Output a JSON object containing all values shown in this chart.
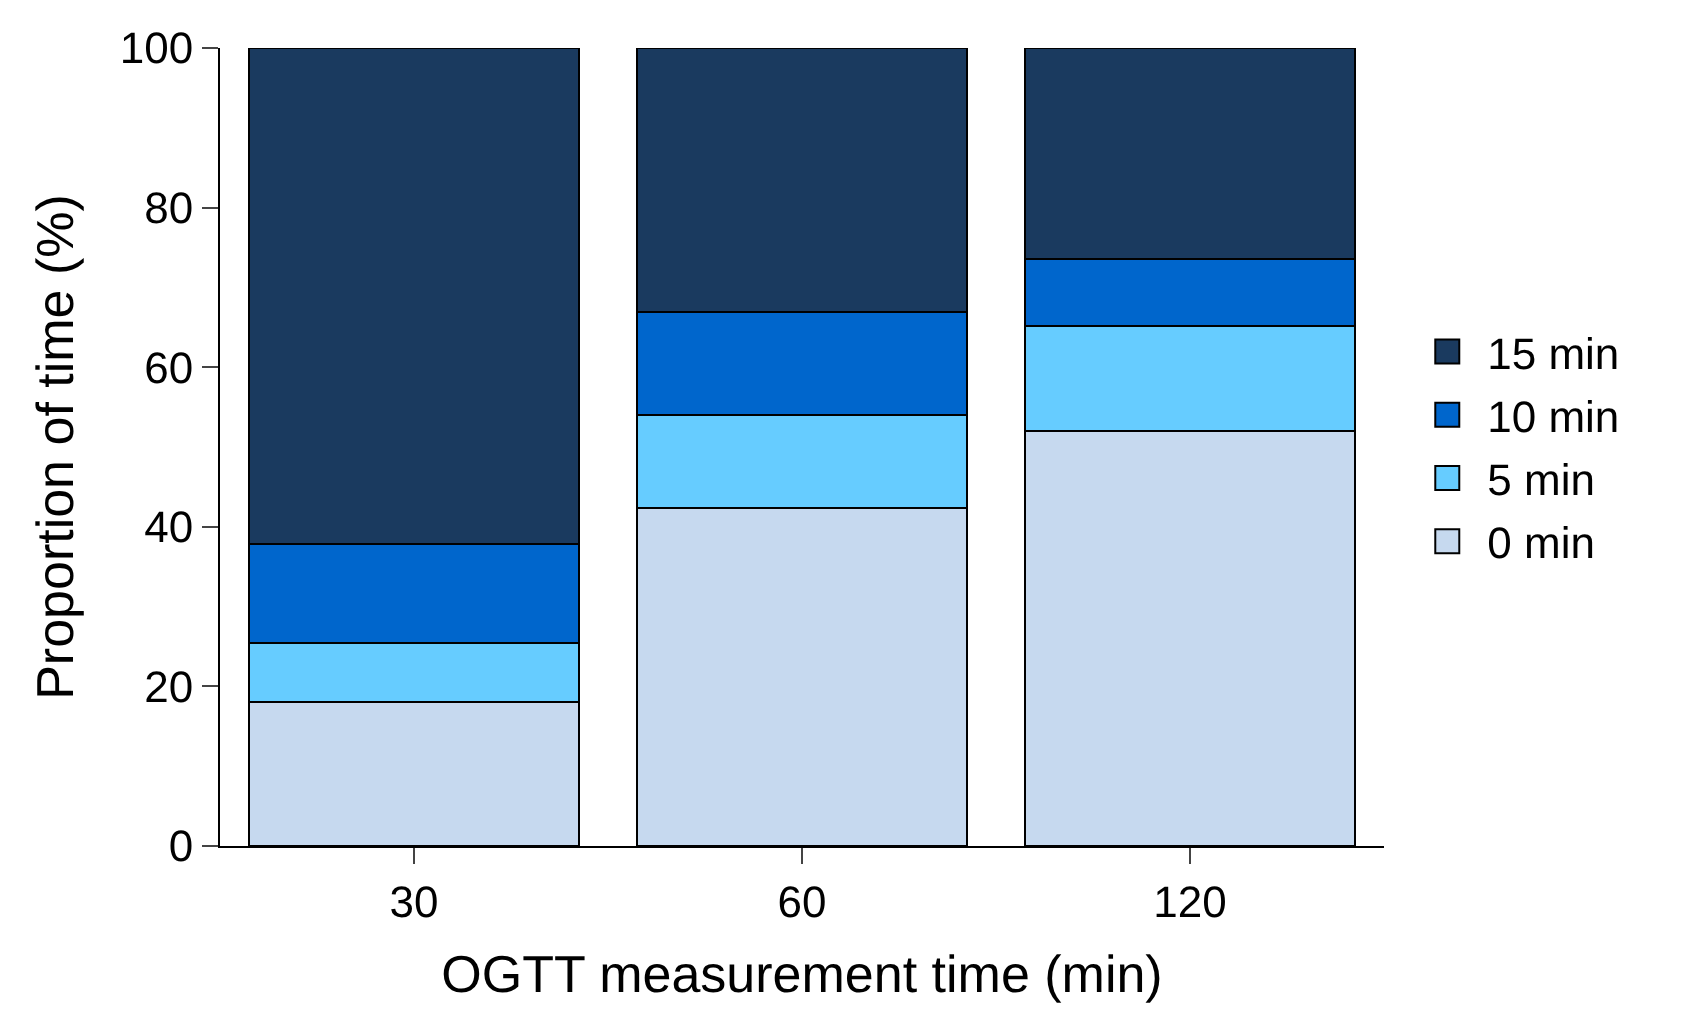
{
  "chart_data": {
    "type": "bar",
    "stacked": true,
    "xlabel": "OGTT measurement time (min)",
    "ylabel": "Proportion of time (%)",
    "categories": [
      "30",
      "60",
      "120"
    ],
    "series": [
      {
        "name": "0 min",
        "color": "#c6d9ef",
        "values": [
          18,
          42.3,
          52
        ]
      },
      {
        "name": "5 min",
        "color": "#66ccff",
        "values": [
          7.4,
          11.7,
          13.2
        ]
      },
      {
        "name": "10 min",
        "color": "#0066cc",
        "values": [
          12.4,
          12.9,
          8.4
        ]
      },
      {
        "name": "15 min",
        "color": "#1a3a5f",
        "values": [
          62.2,
          33.1,
          26.4
        ]
      }
    ],
    "ylim": [
      0,
      100
    ],
    "yticks": [
      0,
      20,
      40,
      60,
      80,
      100
    ],
    "legend": "right"
  }
}
